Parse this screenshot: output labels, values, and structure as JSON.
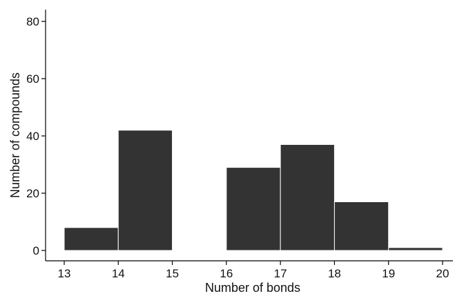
{
  "chart_data": {
    "type": "bar",
    "title": "",
    "xlabel": "Number of bonds",
    "ylabel": "Number of compounds",
    "bins": [
      {
        "from": 13,
        "to": 14,
        "value": 8
      },
      {
        "from": 14,
        "to": 15,
        "value": 42
      },
      {
        "from": 15,
        "to": 16,
        "value": 0
      },
      {
        "from": 16,
        "to": 17,
        "value": 29
      },
      {
        "from": 17,
        "to": 18,
        "value": 37
      },
      {
        "from": 18,
        "to": 19,
        "value": 17
      },
      {
        "from": 19,
        "to": 20,
        "value": 1
      }
    ],
    "xlim": [
      13,
      20
    ],
    "ylim": [
      0,
      80
    ],
    "xticks": [
      "13",
      "14",
      "15",
      "16",
      "17",
      "18",
      "19",
      "20"
    ],
    "yticks": [
      "0",
      "20",
      "40",
      "60",
      "80"
    ],
    "bar_color": "#333333",
    "grid": false
  }
}
